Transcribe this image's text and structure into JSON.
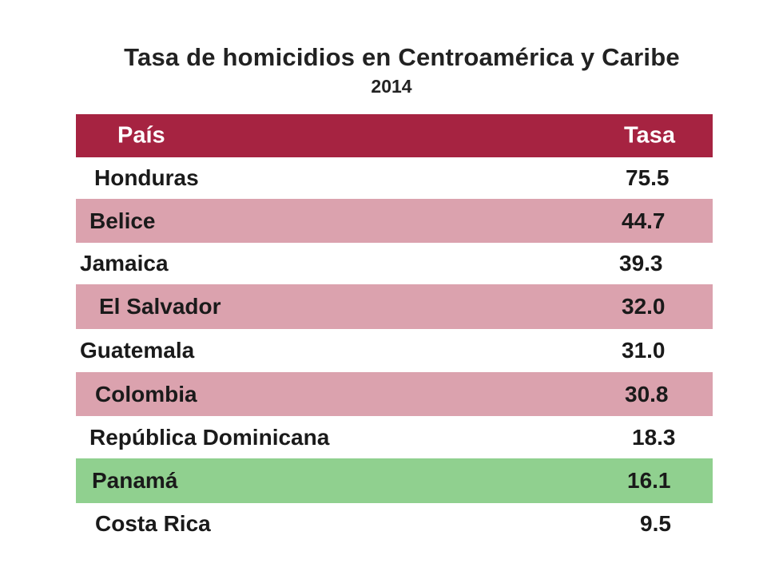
{
  "title": "Tasa de homicidios en Centroamérica y Caribe",
  "subtitle": "2014",
  "colors": {
    "header": "#a62341",
    "highlight_pink": "#dba2ae",
    "highlight_green": "#90d08f",
    "plain": "#ffffff"
  },
  "chart_data": {
    "type": "table",
    "title": "Tasa de homicidios en Centroamérica y Caribe",
    "subtitle": "2014",
    "columns": [
      "País",
      "Tasa"
    ],
    "rows": [
      {
        "country": "Honduras",
        "rate": "75.5",
        "style": "plain"
      },
      {
        "country": "Belice",
        "rate": "44.7",
        "style": "pink"
      },
      {
        "country": "Jamaica",
        "rate": "39.3",
        "style": "plain"
      },
      {
        "country": "El Salvador",
        "rate": "32.0",
        "style": "pink"
      },
      {
        "country": "Guatemala",
        "rate": "31.0",
        "style": "plain"
      },
      {
        "country": "Colombia",
        "rate": "30.8",
        "style": "pink"
      },
      {
        "country": "República Dominicana",
        "rate": "18.3",
        "style": "plain"
      },
      {
        "country": "Panamá",
        "rate": "16.1",
        "style": "green"
      },
      {
        "country": "Costa Rica",
        "rate": "9.5",
        "style": "plain"
      }
    ]
  }
}
